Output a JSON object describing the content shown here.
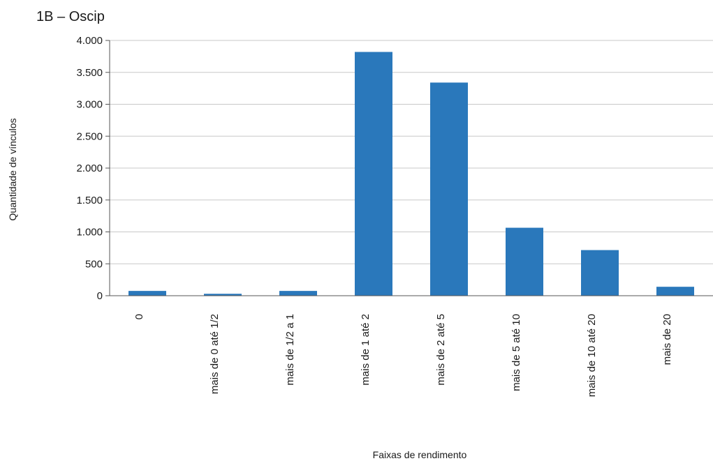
{
  "chart_data": {
    "type": "bar",
    "title": "1B – Oscip",
    "xlabel": "Faixas de rendimento",
    "ylabel": "Quantidade de vínculos",
    "categories": [
      "0",
      "mais de 0 até 1/2",
      "mais de 1/2 a 1",
      "mais de 1 até 2",
      "mais de 2 até 5",
      "mais de 5 até 10",
      "mais de 10 até 20",
      "mais de 20"
    ],
    "values": [
      75,
      30,
      75,
      3820,
      3340,
      1065,
      715,
      140
    ],
    "ylim": [
      0,
      4000
    ],
    "yticks": [
      0,
      500,
      1000,
      1500,
      2000,
      2500,
      3000,
      3500,
      4000
    ],
    "ytick_labels": [
      "0",
      "500",
      "1.000",
      "1.500",
      "2.000",
      "2.500",
      "3.000",
      "3.500",
      "4.000"
    ],
    "grid": true,
    "bar_color": "#2a78bb",
    "grid_color": "#c8c8c8"
  }
}
